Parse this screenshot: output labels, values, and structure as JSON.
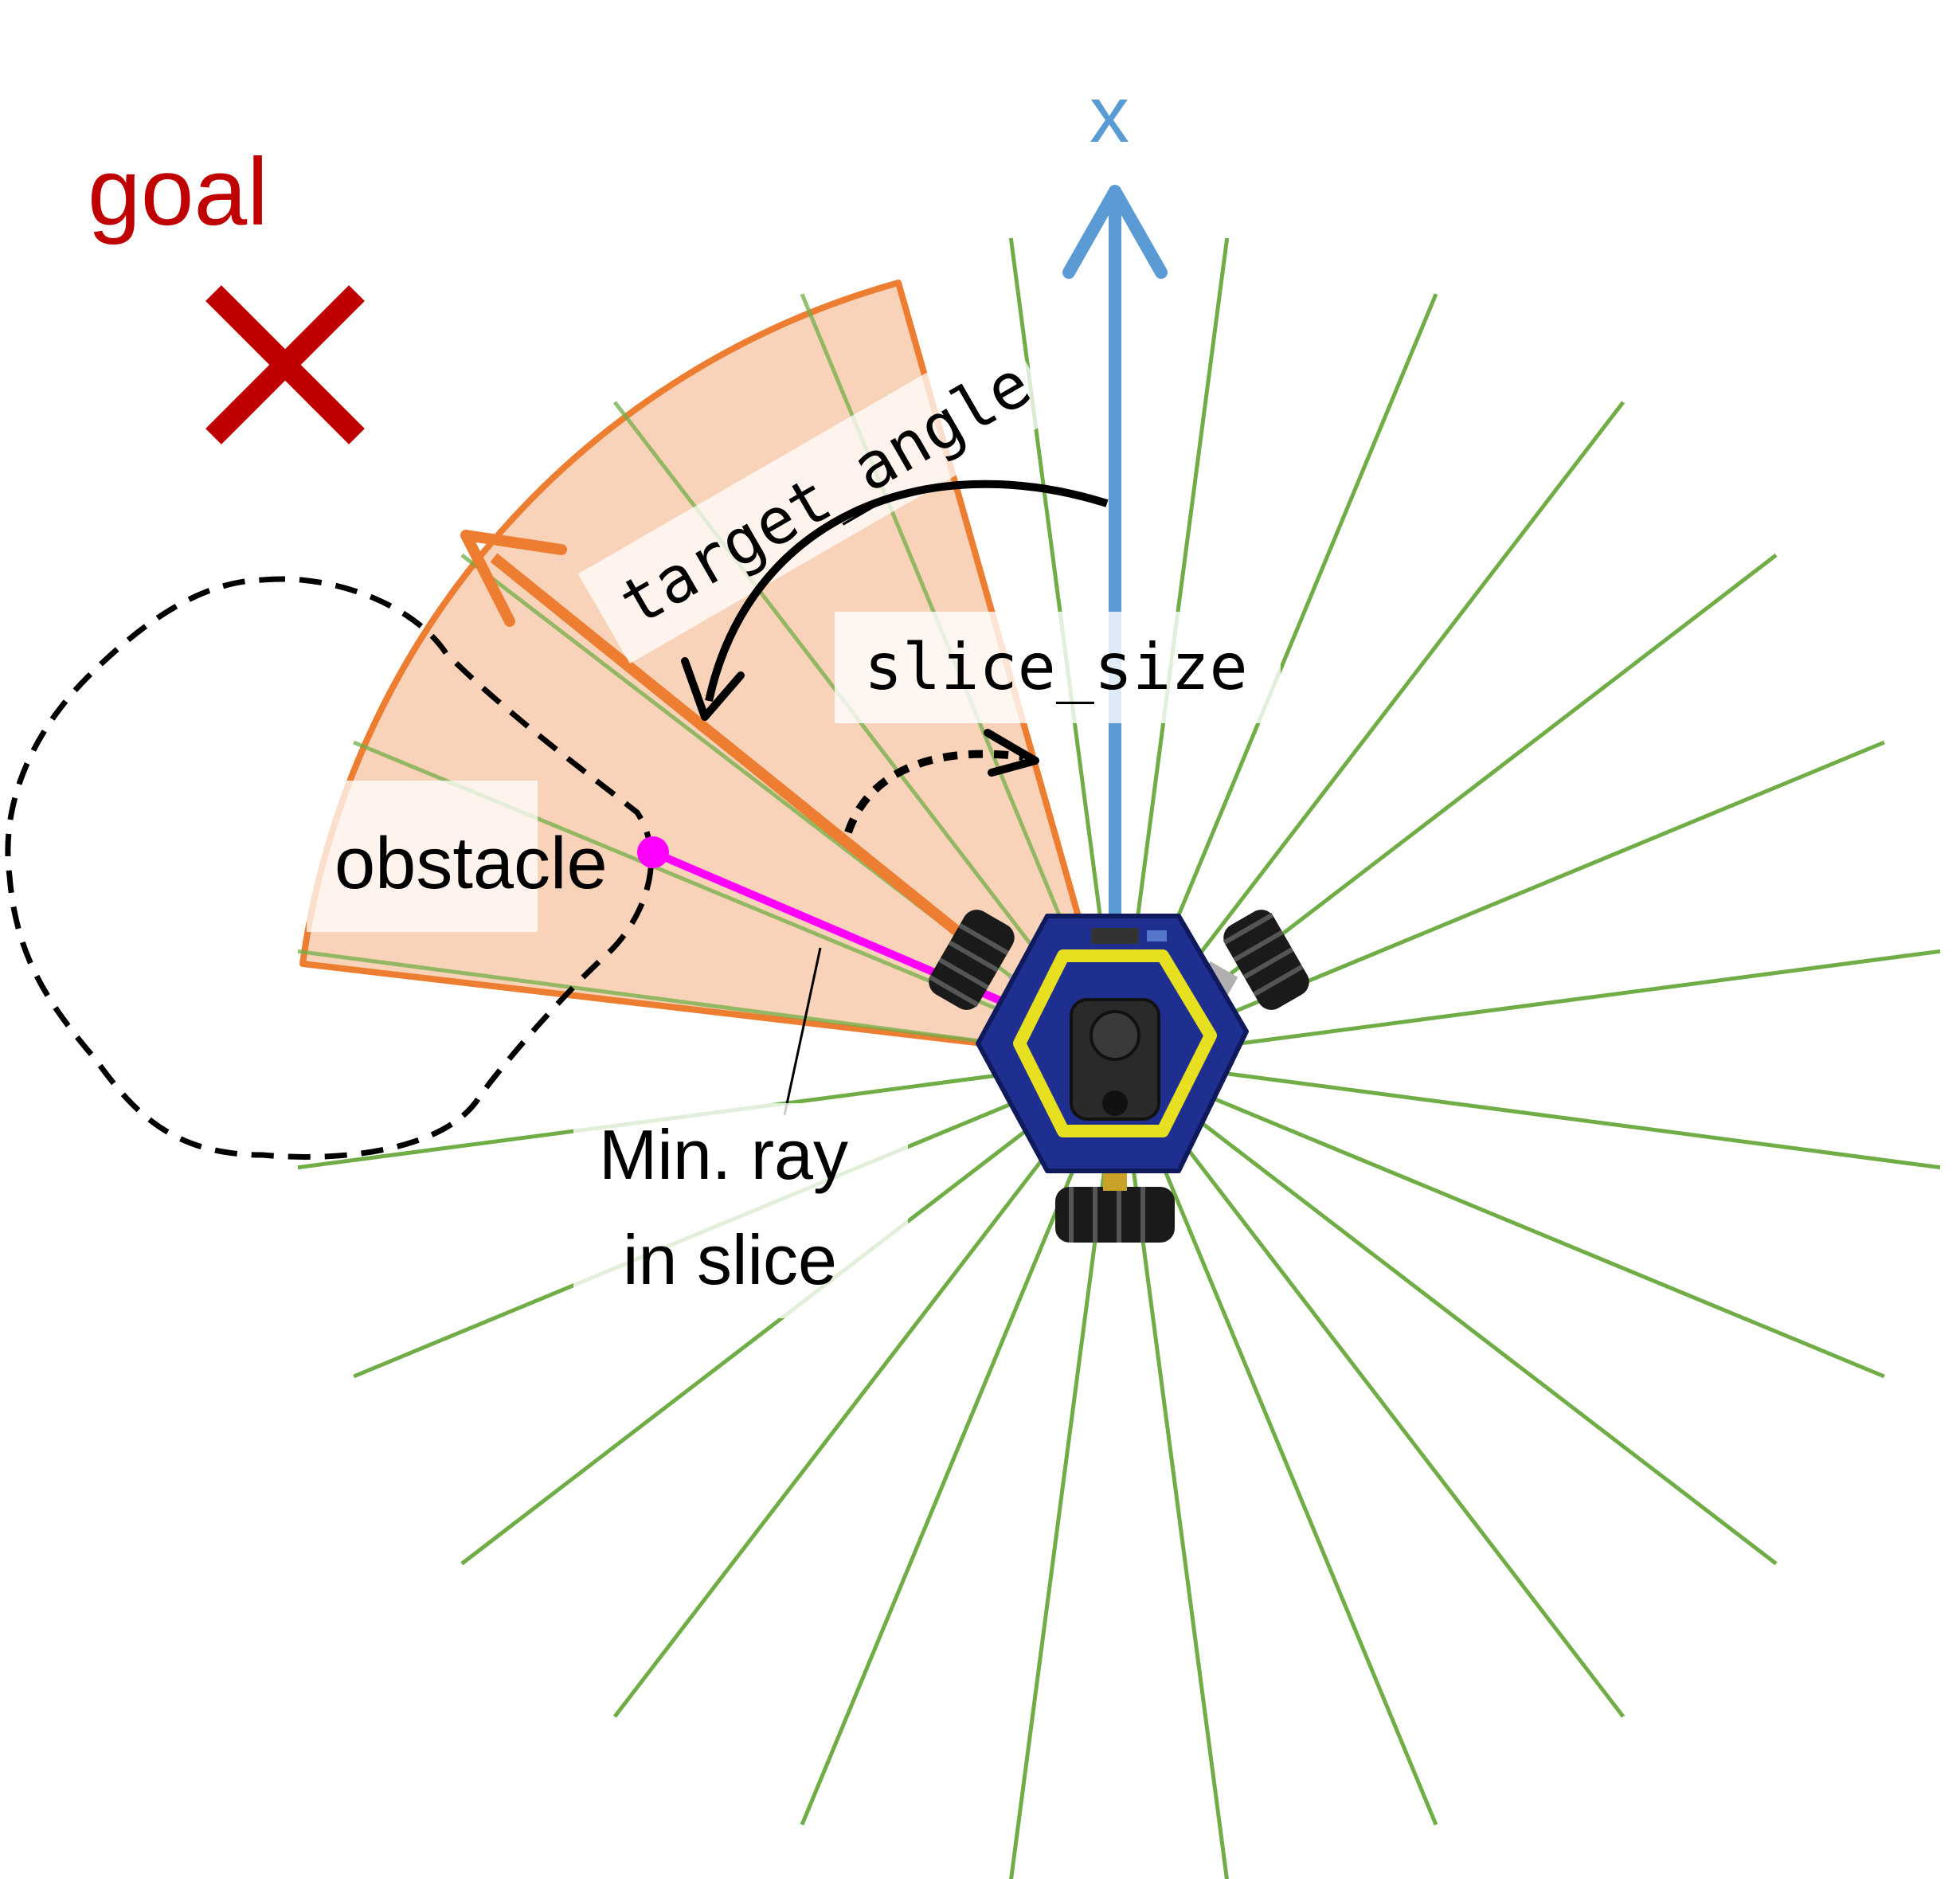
{
  "labels": {
    "goal": "goal",
    "axis_x": "x",
    "target_angle": "target_angle",
    "slice_size": "slice_size",
    "obstacle": "obstacle",
    "min_ray_line1": "Min. ray",
    "min_ray_line2": "in slice"
  },
  "colors": {
    "goal": "#c00000",
    "axis": "#5b9bd5",
    "rays": "#70ad47",
    "slice_fill": "#f8cbad",
    "slice_stroke": "#ed7d31",
    "min_ray": "#ff00ff",
    "robot_body": "#1f2f8f",
    "robot_ring": "#e6e020"
  },
  "icons": {
    "goal_marker": "x-cross-icon",
    "robot": "omni-robot-icon"
  }
}
